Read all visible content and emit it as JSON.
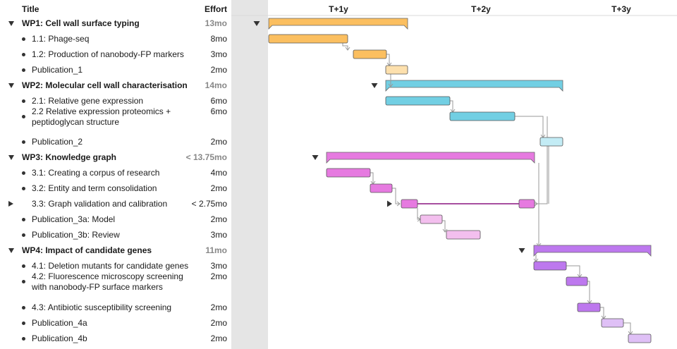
{
  "header": {
    "title": "Title",
    "effort": "Effort"
  },
  "timeline": {
    "labels": [
      "T+1y",
      "T+2y",
      "T+3y"
    ]
  },
  "colors": {
    "wp1": "#fbbf60",
    "wp1_pub": "#fde0ad",
    "wp2": "#72cfe3",
    "wp2_pub": "#c3ecf5",
    "wp3": "#e67ae0",
    "wp3_pub": "#f3bfee",
    "wp4": "#bd78ee",
    "wp4_pub": "#dfc0f6",
    "arrow": "#9a9a9a"
  },
  "rows": [
    {
      "type": "wp",
      "label": "WP1: Cell wall surface typing",
      "effort": "13mo"
    },
    {
      "type": "task",
      "label": "1.1: Phage-seq",
      "effort": "8mo"
    },
    {
      "type": "task",
      "label": "1.2: Production of nanobody-FP markers",
      "effort": "3mo"
    },
    {
      "type": "task",
      "label": "Publication_1",
      "effort": "2mo"
    },
    {
      "type": "wp",
      "label": "WP2: Molecular cell wall characterisation",
      "effort": "14mo"
    },
    {
      "type": "task",
      "label": "2.1: Relative gene expression",
      "effort": "6mo"
    },
    {
      "type": "task",
      "label": "2.2 Relative expression proteomics +",
      "label2": "peptidoglycan structure",
      "effort": "6mo"
    },
    {
      "type": "task",
      "label": "Publication_2",
      "effort": "2mo"
    },
    {
      "type": "wp",
      "label": "WP3: Knowledge graph",
      "effort": "< 13.75mo"
    },
    {
      "type": "task",
      "label": "3.1: Creating a corpus of research",
      "effort": "4mo"
    },
    {
      "type": "task",
      "label": "3.2: Entity and term consolidation",
      "effort": "2mo"
    },
    {
      "type": "collapsed",
      "label": "3.3: Graph validation and calibration",
      "effort": "< 2.75mo"
    },
    {
      "type": "task",
      "label": "Publication_3a: Model",
      "effort": "2mo"
    },
    {
      "type": "task",
      "label": "Publication_3b: Review",
      "effort": "3mo"
    },
    {
      "type": "wp",
      "label": "WP4: Impact of candidate genes",
      "effort": "11mo"
    },
    {
      "type": "task",
      "label": "4.1: Deletion mutants for candidate genes",
      "effort": "3mo"
    },
    {
      "type": "task",
      "label": "4.2: Fluorescence microscopy screening",
      "label2": "with nanobody-FP surface markers",
      "effort": "2mo"
    },
    {
      "type": "task",
      "label": "4.3: Antibiotic susceptibility screening",
      "effort": "2mo"
    },
    {
      "type": "task",
      "label": "Publication_4a",
      "effort": "2mo"
    },
    {
      "type": "task",
      "label": "Publication_4b",
      "effort": "2mo"
    }
  ]
}
